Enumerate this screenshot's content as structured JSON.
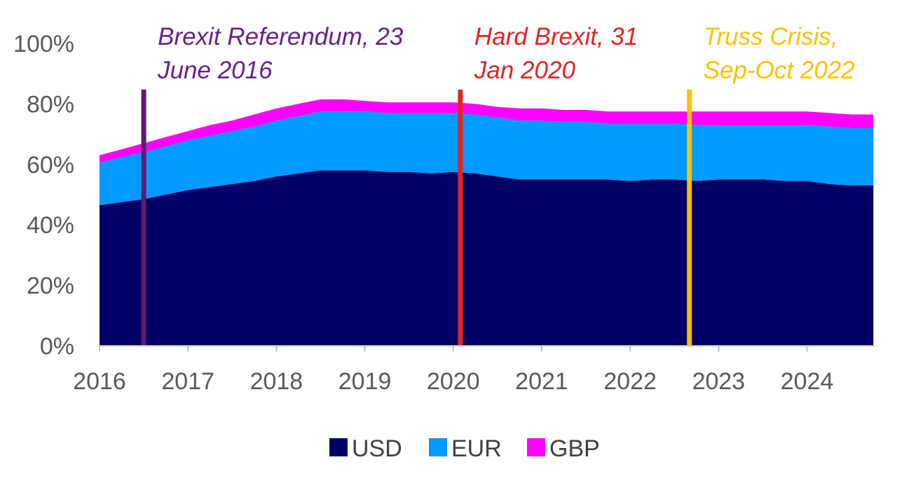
{
  "chart_data": {
    "type": "area",
    "stacked": true,
    "title": "",
    "xlabel": "",
    "ylabel": "",
    "x_range": [
      2016.0,
      2024.75
    ],
    "ylim": [
      0,
      100
    ],
    "y_ticks": [
      "0%",
      "20%",
      "40%",
      "60%",
      "80%",
      "100%"
    ],
    "x_ticks": [
      "2016",
      "2017",
      "2018",
      "2019",
      "2020",
      "2021",
      "2022",
      "2023",
      "2024"
    ],
    "grid": false,
    "legend_position": "bottom",
    "x": [
      2016.0,
      2016.25,
      2016.5,
      2016.75,
      2017.0,
      2017.25,
      2017.5,
      2017.75,
      2018.0,
      2018.25,
      2018.5,
      2018.75,
      2019.0,
      2019.25,
      2019.5,
      2019.75,
      2020.0,
      2020.25,
      2020.5,
      2020.75,
      2021.0,
      2021.25,
      2021.5,
      2021.75,
      2022.0,
      2022.25,
      2022.5,
      2022.75,
      2023.0,
      2023.25,
      2023.5,
      2023.75,
      2024.0,
      2024.25,
      2024.5,
      2024.75
    ],
    "series": [
      {
        "name": "USD",
        "color": "#000066",
        "values": [
          46.5,
          47.5,
          48.5,
          50,
          51.5,
          52.5,
          53.5,
          54.5,
          56,
          57,
          58,
          58,
          58,
          57.5,
          57.5,
          57,
          57.5,
          57,
          56,
          55,
          55,
          55,
          55,
          55,
          54.5,
          55,
          55,
          54.5,
          55,
          55,
          55,
          54.5,
          54.5,
          53.5,
          53,
          53
        ]
      },
      {
        "name": "EUR",
        "color": "#0099FF",
        "values": [
          14,
          15,
          15.5,
          16,
          16.5,
          17,
          17.5,
          18,
          18.5,
          19,
          19.5,
          19.5,
          19.5,
          19.5,
          19.5,
          20,
          19.5,
          19.5,
          19.5,
          19.5,
          19.5,
          19,
          19,
          18.5,
          19,
          18.5,
          18.5,
          18.5,
          18,
          18,
          18,
          18.5,
          18.5,
          19,
          19,
          19
        ]
      },
      {
        "name": "GBP",
        "color": "#FF00FF",
        "values": [
          2.5,
          2.5,
          3,
          3,
          3,
          3.5,
          3.5,
          4,
          4,
          4,
          4,
          4,
          3.5,
          3.5,
          3.5,
          3.5,
          3.5,
          3.5,
          3.5,
          4,
          4,
          4,
          4,
          4,
          4,
          4,
          4,
          4.5,
          4.5,
          4.5,
          4.5,
          4.5,
          4.5,
          4.5,
          4.5,
          4.5
        ]
      }
    ],
    "annotations": [
      {
        "x": 2016.5,
        "color": "#5F1A6E",
        "text_color": "#6A1F8A",
        "lines": [
          "Brexit Referendum, 23",
          "June 2016"
        ]
      },
      {
        "x": 2020.08,
        "color": "#E02424",
        "text_color": "#E02424",
        "lines": [
          "Hard Brexit, 31",
          "Jan 2020"
        ]
      },
      {
        "x": 2022.67,
        "color": "#FFC000",
        "text_color": "#FFC000",
        "lines": [
          "Truss Crisis,",
          "Sep-Oct 2022"
        ]
      }
    ]
  }
}
